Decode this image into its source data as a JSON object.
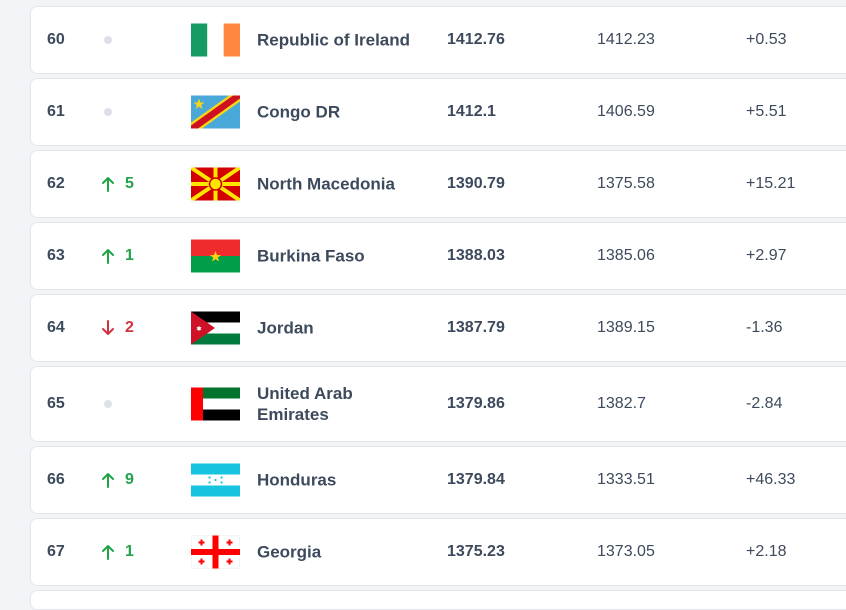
{
  "rows": [
    {
      "rank": "60",
      "change": "",
      "dir": "none",
      "country": "Republic of Ireland",
      "flag": "ireland-flag",
      "points": "1412.76",
      "previous": "1412.23",
      "diff": "+0.53"
    },
    {
      "rank": "61",
      "change": "",
      "dir": "none",
      "country": "Congo DR",
      "flag": "congo-dr-flag",
      "points": "1412.1",
      "previous": "1406.59",
      "diff": "+5.51"
    },
    {
      "rank": "62",
      "change": "5",
      "dir": "up",
      "country": "North Macedonia",
      "flag": "north-macedonia-flag",
      "points": "1390.79",
      "previous": "1375.58",
      "diff": "+15.21"
    },
    {
      "rank": "63",
      "change": "1",
      "dir": "up",
      "country": "Burkina Faso",
      "flag": "burkina-faso-flag",
      "points": "1388.03",
      "previous": "1385.06",
      "diff": "+2.97"
    },
    {
      "rank": "64",
      "change": "2",
      "dir": "down",
      "country": "Jordan",
      "flag": "jordan-flag",
      "points": "1387.79",
      "previous": "1389.15",
      "diff": "-1.36"
    },
    {
      "rank": "65",
      "change": "",
      "dir": "none",
      "country": "United Arab Emirates",
      "flag": "uae-flag",
      "points": "1379.86",
      "previous": "1382.7",
      "diff": "-2.84"
    },
    {
      "rank": "66",
      "change": "9",
      "dir": "up",
      "country": "Honduras",
      "flag": "honduras-flag",
      "points": "1379.84",
      "previous": "1333.51",
      "diff": "+46.33"
    },
    {
      "rank": "67",
      "change": "1",
      "dir": "up",
      "country": "Georgia",
      "flag": "georgia-flag",
      "points": "1375.23",
      "previous": "1373.05",
      "diff": "+2.18"
    }
  ],
  "colors": {
    "up": "#21a34a",
    "down": "#d0313e",
    "neutral_dot": "#dde1e8"
  }
}
